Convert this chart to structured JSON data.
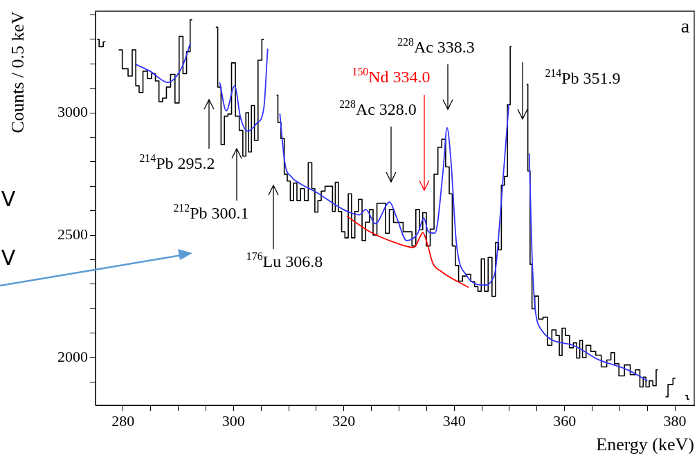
{
  "chart_data": {
    "type": "step",
    "xlabel": "Energy (keV)",
    "ylabel": "Counts / 0.5 keV",
    "xlim": [
      275,
      383.5
    ],
    "ylim": [
      1805,
      3415
    ],
    "xticks": [
      280,
      {
        "value": 285,
        "label": null
      },
      {
        "value": 290,
        "label": null
      },
      {
        "value": 295,
        "label": null
      },
      300,
      {
        "value": 305,
        "label": null
      },
      {
        "value": 310,
        "label": null
      },
      {
        "value": 315,
        "label": null
      },
      320,
      {
        "value": 325,
        "label": null
      },
      {
        "value": 330,
        "label": null
      },
      {
        "value": 335,
        "label": null
      },
      340,
      {
        "value": 345,
        "label": null
      },
      {
        "value": 350,
        "label": null
      },
      {
        "value": 355,
        "label": null
      },
      360,
      {
        "value": 365,
        "label": null
      },
      {
        "value": 370,
        "label": null
      },
      {
        "value": 375,
        "label": null
      },
      380
    ],
    "yticks": [
      {
        "value": 1900,
        "label": null
      },
      2000,
      {
        "value": 2100,
        "label": null
      },
      {
        "value": 2200,
        "label": null
      },
      {
        "value": 2300,
        "label": null
      },
      {
        "value": 2400,
        "label": null
      },
      2500,
      {
        "value": 2600,
        "label": null
      },
      {
        "value": 2700,
        "label": null
      },
      {
        "value": 2800,
        "label": null
      },
      {
        "value": 2900,
        "label": null
      },
      3000,
      {
        "value": 3100,
        "label": null
      },
      {
        "value": 3200,
        "label": null
      },
      {
        "value": 3300,
        "label": null
      },
      {
        "value": 3400,
        "label": null
      }
    ],
    "series": [
      {
        "type": "step",
        "color": "#000000",
        "x": [
          275.3,
          276,
          276.8,
          277.5,
          278.3,
          279.2,
          280.5,
          281.3,
          282,
          282.6,
          283.2,
          284,
          284.8,
          285.5,
          286.2,
          286.8,
          287.5,
          288.2,
          289,
          289.8,
          290.5,
          291.2,
          291.8,
          292.5,
          293.2,
          294,
          295,
          296,
          296.8,
          297.5,
          298,
          298.7,
          299.3,
          300,
          300.7,
          301.4,
          302,
          302.5,
          303,
          303.5,
          304.1,
          304.8,
          305.5,
          306.2,
          307,
          307.8,
          308.3,
          308.9,
          309.5,
          310,
          310.6,
          311.2,
          311.8,
          312.5,
          313.2,
          313.9,
          314.5,
          315,
          315.6,
          316.2,
          317,
          317.7,
          318.2,
          318.7,
          319.3,
          319.9,
          320.5,
          321.1,
          321.7,
          322.3,
          323,
          323.6,
          324.3,
          325,
          325.6,
          326.4,
          327.2,
          327.9,
          328.6,
          329.4,
          330.3,
          331.2,
          332,
          332.7,
          333.4,
          334,
          334.6,
          335.3,
          336,
          336.7,
          337.4,
          338.1,
          338.8,
          339.4,
          339.9,
          340.5,
          341.1,
          341.9,
          342.6,
          343.4,
          344,
          344.6,
          345.2,
          345.8,
          346.5,
          347.2,
          347.8,
          348.3,
          348.8,
          349.4,
          349.9,
          350.4,
          351,
          352,
          353.1,
          353.6,
          353.9,
          354.3,
          354.9,
          355.7,
          356.5,
          357.3,
          358.1,
          358.8,
          359.3,
          359.8,
          360.5,
          361.3,
          361.9,
          362.5,
          363,
          363.5,
          364.3,
          365.2,
          366.1,
          367.2,
          368.1,
          368.7,
          369.4,
          370.3,
          371.4,
          372.4,
          373.3,
          374,
          374.5,
          375,
          375.7,
          376.3,
          376.9,
          377.5,
          378.3,
          379.2,
          380.1,
          381,
          381.9,
          382.6
        ],
        "values": [
          3300,
          3270,
          3290,
          null,
          null,
          3257,
          3180,
          3150,
          3257,
          3110,
          3083,
          3170,
          3140,
          3160,
          3130,
          3045,
          3060,
          3105,
          3157,
          3040,
          3312,
          3160,
          3250,
          3380,
          null,
          null,
          null,
          null,
          3350,
          3105,
          2870,
          2986,
          2995,
          3204,
          2986,
          2928,
          2823,
          3000,
          2840,
          3030,
          2887,
          3215,
          3300,
          null,
          null,
          3072,
          2961,
          2895,
          2749,
          2721,
          2641,
          2713,
          2641,
          2690,
          2641,
          2796,
          2690,
          2594,
          2641,
          2680,
          2700,
          2700,
          2597,
          2716,
          2597,
          2514,
          2489,
          2669,
          2489,
          2597,
          2646,
          2478,
          2553,
          2605,
          2500,
          2630,
          2630,
          2508,
          2605,
          2552,
          2552,
          2514,
          2514,
          2456,
          2605,
          2522,
          2592,
          2456,
          2525,
          2749,
          2859,
          2892,
          2779,
          2669,
          2456,
          2376,
          2312,
          2333,
          2340,
          2310,
          2290,
          2271,
          2403,
          2271,
          2409,
          2250,
          2470,
          2440,
          2704,
          2740,
          3033,
          3270,
          null,
          null,
          3116,
          2762,
          2381,
          2199,
          2251,
          2157,
          2165,
          2050,
          2113,
          2090,
          2008,
          2120,
          2090,
          2040,
          2060,
          1998,
          2070,
          2000,
          2050,
          2025,
          2010,
          1962,
          1990,
          2020,
          1975,
          1925,
          1970,
          1930,
          1950,
          1880,
          1920,
          1880,
          1905,
          1885,
          1950,
          null,
          1840,
          1890,
          1915,
          null,
          1845,
          1830
        ]
      },
      {
        "type": "line",
        "color": "#3333ff",
        "x": [
          282.4,
          285,
          288.1,
          290.7,
          292.2,
          293.2,
          296.8,
          297.5,
          298.7,
          300.2,
          301.3,
          302.6,
          304.2,
          305.5,
          306.2,
          307,
          307.4,
          308.4,
          309.3,
          310.5,
          312,
          315.1,
          319.9,
          322.8,
          324,
          325.7,
          328.3,
          329.6,
          331.4,
          333.4,
          334.5,
          335.3,
          336.5,
          338,
          338.7,
          339.4,
          340.4,
          342.1,
          345.5,
          346.9,
          347.5,
          348.8,
          349.9,
          350.6,
          353,
          353.6,
          354.2,
          355.4,
          360.9,
          366.1,
          371.4,
          375
        ],
        "values": [
          3197,
          3168,
          3124,
          3188,
          3285,
          null,
          null,
          3124,
          3008,
          3110,
          2978,
          2925,
          2956,
          3019,
          3262,
          null,
          null,
          2997,
          2796,
          2738,
          2712,
          2674,
          2605,
          2583,
          2605,
          2547,
          2635,
          2570,
          2478,
          2508,
          2570,
          2514,
          2508,
          2765,
          2939,
          2807,
          2467,
          2340,
          2296,
          2318,
          2362,
          2716,
          3033,
          null,
          null,
          2834,
          2362,
          2127,
          2055,
          1992,
          1950,
          1905
        ]
      },
      {
        "type": "line",
        "color": "#ff0000",
        "x": [
          320.6,
          324.7,
          329.6,
          332.7,
          333.9,
          334.3,
          335.1,
          336.1,
          337.7,
          342.6
        ],
        "values": [
          2577,
          2514,
          2467,
          2450,
          2497,
          2511,
          2467,
          2387,
          2351,
          2287
        ]
      }
    ],
    "annotations": [
      "$^{214}$Pb 295.2",
      "$^{212}$Pb 300.1",
      "$^{176}$Lu 306.8",
      "$^{228}$Ac 328.0",
      "$^{150}$Nd 334.0",
      "$^{228}$Ac 338.3",
      "$^{214}$Pb 351.9",
      "a",
      "V",
      "V"
    ]
  }
}
